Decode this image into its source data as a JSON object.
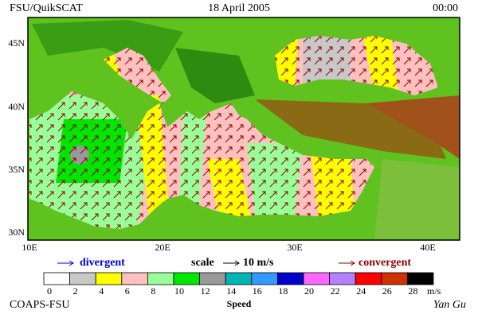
{
  "header": {
    "source": "FSU/QuikSCAT",
    "date": "18 April 2005",
    "time": "00:00"
  },
  "map": {
    "lat_labels": [
      "45N",
      "40N",
      "35N",
      "30N"
    ],
    "lon_labels": [
      "10E",
      "20E",
      "30E",
      "40E"
    ]
  },
  "legend": {
    "divergent": "divergent",
    "scale": "scale",
    "scale_value": "10 m/s",
    "convergent": "convergent"
  },
  "colorbar": {
    "colors": [
      "#ffffff",
      "#c8c8c8",
      "#ffff00",
      "#ffc0c0",
      "#99ff99",
      "#00e600",
      "#999999",
      "#00b4b4",
      "#3399ff",
      "#0000cc",
      "#ff66ff",
      "#b380ff",
      "#ff0000",
      "#cc3300",
      "#000000"
    ],
    "labels": [
      0,
      2,
      4,
      6,
      8,
      10,
      12,
      14,
      16,
      18,
      20,
      22,
      24,
      26,
      28
    ],
    "unit": "m/s",
    "title": "Speed"
  },
  "footer": {
    "org": "COAPS-FSU",
    "author": "Yan Gu"
  }
}
